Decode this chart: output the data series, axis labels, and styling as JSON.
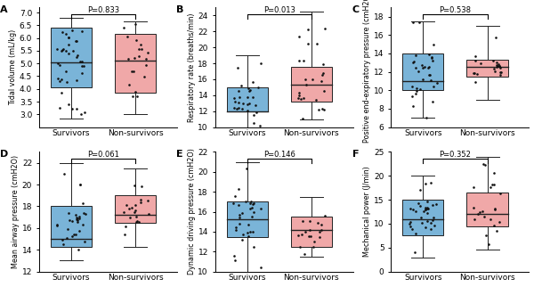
{
  "panels": [
    {
      "label": "A",
      "pvalue": "P=0.833",
      "ylabel": "Tidal volume (mL/kg)",
      "ylim": [
        2.5,
        7.2
      ],
      "yticks": [
        3.0,
        3.5,
        4.0,
        4.5,
        5.0,
        5.5,
        6.0,
        6.5,
        7.0
      ],
      "survivors": {
        "median": 5.05,
        "q1": 4.05,
        "q3": 6.4,
        "whislo": 2.85,
        "whishi": 6.8,
        "n_dots": 38
      },
      "nonsurvivors": {
        "median": 5.1,
        "q1": 3.85,
        "q3": 6.15,
        "whislo": 3.0,
        "whishi": 6.65,
        "n_dots": 20
      }
    },
    {
      "label": "B",
      "pvalue": "P=0.013",
      "ylabel": "Respiratory rate (breaths/min)",
      "ylim": [
        10,
        25
      ],
      "yticks": [
        10,
        12,
        14,
        16,
        18,
        20,
        22,
        24
      ],
      "survivors": {
        "median": 12.0,
        "q1": 12.0,
        "q3": 15.0,
        "whislo": 10.0,
        "whishi": 19.0,
        "n_dots": 28
      },
      "nonsurvivors": {
        "median": 15.3,
        "q1": 13.2,
        "q3": 17.5,
        "whislo": 11.0,
        "whishi": 24.5,
        "n_dots": 25
      }
    },
    {
      "label": "C",
      "pvalue": "P=0.538",
      "ylabel": "Positive end-expiratory pressure (cmH2O)",
      "ylim": [
        6,
        19
      ],
      "yticks": [
        6,
        8,
        10,
        12,
        14,
        16,
        18
      ],
      "survivors": {
        "median": 11.0,
        "q1": 10.0,
        "q3": 14.0,
        "whislo": 7.0,
        "whishi": 17.5,
        "n_dots": 32
      },
      "nonsurvivors": {
        "median": 12.5,
        "q1": 11.5,
        "q3": 13.3,
        "whislo": 9.0,
        "whishi": 17.0,
        "n_dots": 22
      }
    },
    {
      "label": "D",
      "pvalue": "P=0.061",
      "ylabel": "Mean airway pressure (cmH2O)",
      "ylim": [
        12,
        23
      ],
      "yticks": [
        12,
        14,
        16,
        18,
        20,
        22
      ],
      "survivors": {
        "median": 15.0,
        "q1": 14.3,
        "q3": 18.0,
        "whislo": 13.0,
        "whishi": 22.0,
        "n_dots": 30
      },
      "nonsurvivors": {
        "median": 17.2,
        "q1": 16.5,
        "q3": 19.0,
        "whislo": 14.3,
        "whishi": 21.5,
        "n_dots": 20
      }
    },
    {
      "label": "E",
      "pvalue": "P=0.146",
      "ylabel": "Dynamic driving pressure (cmH2O)",
      "ylim": [
        10,
        22
      ],
      "yticks": [
        10,
        12,
        14,
        16,
        18,
        20,
        22
      ],
      "survivors": {
        "median": 15.2,
        "q1": 13.5,
        "q3": 17.0,
        "whislo": 10.0,
        "whishi": 21.0,
        "n_dots": 32
      },
      "nonsurvivors": {
        "median": 14.2,
        "q1": 12.5,
        "q3": 15.5,
        "whislo": 11.5,
        "whishi": 17.5,
        "n_dots": 18
      }
    },
    {
      "label": "F",
      "pvalue": "P=0.352",
      "ylabel": "Mechanical power (J/min)",
      "ylim": [
        0,
        25
      ],
      "yticks": [
        0,
        5,
        10,
        15,
        20,
        25
      ],
      "survivors": {
        "median": 11.0,
        "q1": 7.5,
        "q3": 15.0,
        "whislo": 3.0,
        "whishi": 20.0,
        "n_dots": 34
      },
      "nonsurvivors": {
        "median": 12.0,
        "q1": 9.5,
        "q3": 16.5,
        "whislo": 4.5,
        "whishi": 24.0,
        "n_dots": 22
      }
    }
  ],
  "survivor_color": "#7ab4d8",
  "nonsurvivor_color": "#f0a8a8",
  "box_edgecolor": "#222222",
  "dot_color": "#111111",
  "median_color": "#222222",
  "whisker_color": "#222222",
  "categories": [
    "Survivors",
    "Non-survivors"
  ]
}
